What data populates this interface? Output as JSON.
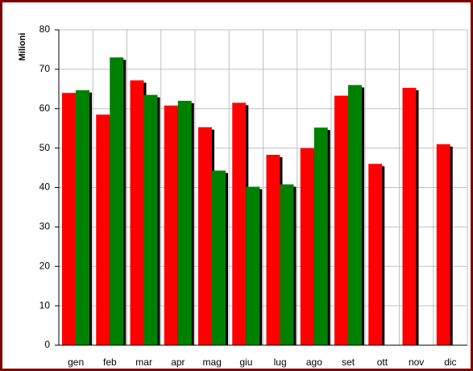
{
  "chart_data": {
    "type": "bar",
    "y_label": "Milioni",
    "categories": [
      "gen",
      "feb",
      "mar",
      "apr",
      "mag",
      "giu",
      "lug",
      "ago",
      "set",
      "ott",
      "nov",
      "dic"
    ],
    "series": [
      {
        "color": "#ff0000",
        "values": [
          64,
          58.5,
          67.2,
          60.8,
          55.3,
          61.5,
          48.3,
          50,
          63.3,
          46,
          65.3,
          51
        ]
      },
      {
        "color": "#008000",
        "values": [
          64.7,
          73,
          63.5,
          62,
          44.3,
          40.2,
          40.8,
          55.2,
          66,
          null,
          null,
          null
        ]
      }
    ],
    "ylim": [
      0,
      80
    ],
    "yticks": [
      0,
      10,
      20,
      30,
      40,
      50,
      60,
      70,
      80
    ],
    "grid": true
  }
}
